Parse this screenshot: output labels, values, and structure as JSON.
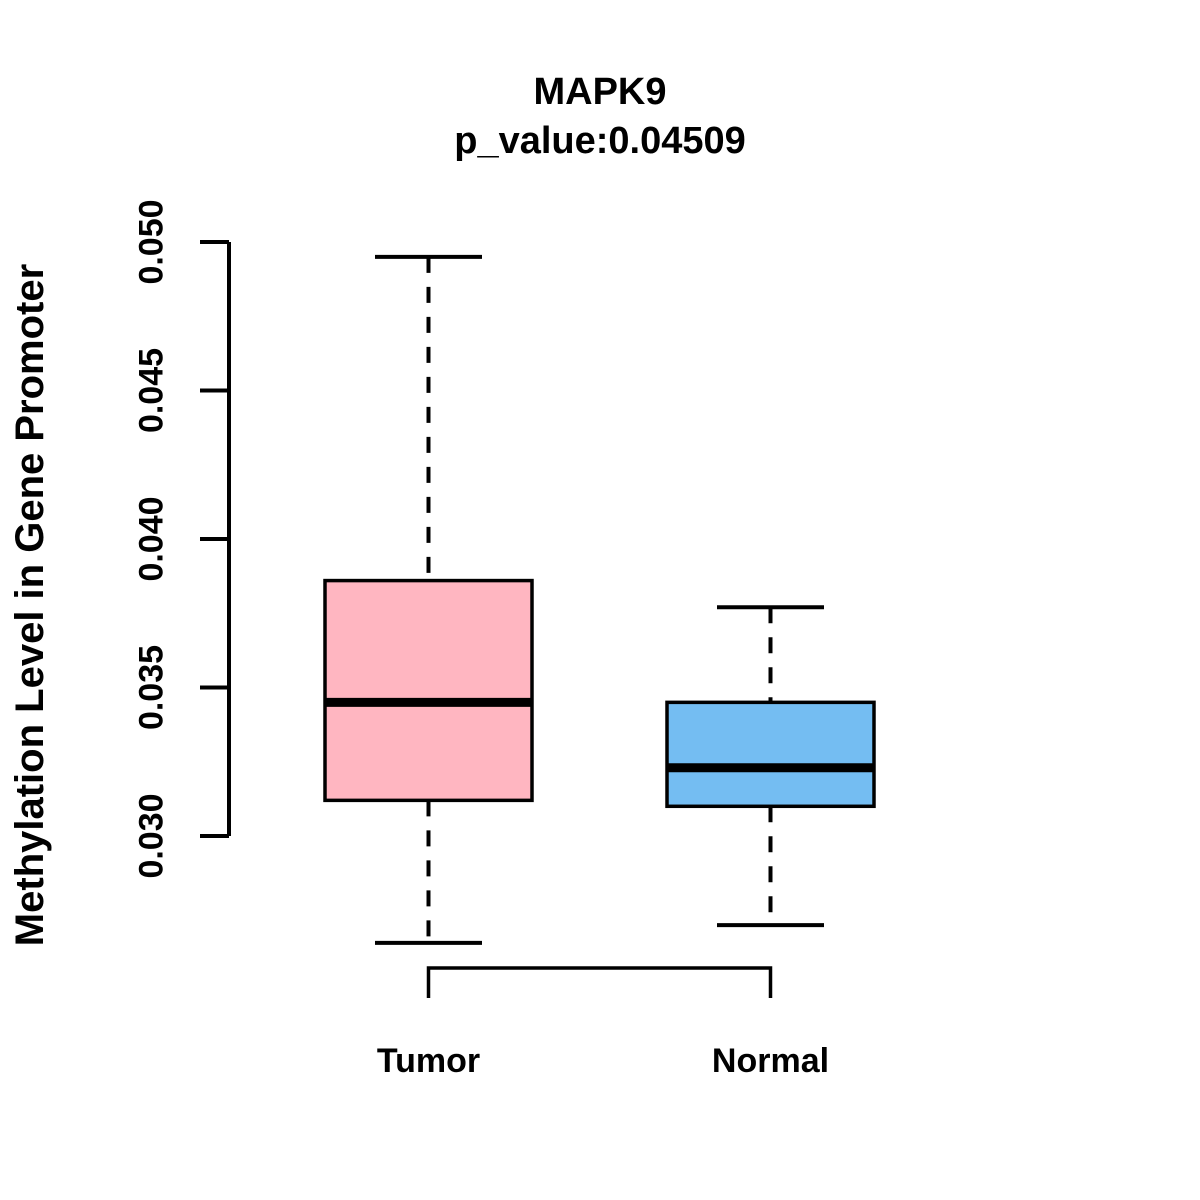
{
  "figure": {
    "background_color": "#ffffff",
    "text_color": "#000000"
  },
  "chart_data": {
    "type": "boxplot",
    "title": "MAPK9",
    "subtitle": "p_value:0.04509",
    "p_value": 0.04509,
    "ylabel": "Methylation Level in Gene Promoter",
    "xlabel": "",
    "ylim": [
      0.03,
      0.05
    ],
    "yticks": [
      0.05,
      0.045,
      0.04,
      0.035,
      0.03
    ],
    "ytick_labels": [
      "0.050",
      "0.045",
      "0.040",
      "0.035",
      "0.030"
    ],
    "grid": false,
    "legend": "none",
    "categories": [
      "Tumor",
      "Normal"
    ],
    "groups": [
      {
        "label": "Tumor",
        "fill_color": "#FFB6C1",
        "whisker_high": 0.0495,
        "q3": 0.0386,
        "median": 0.0345,
        "q1": 0.0312,
        "whisker_low": 0.0264
      },
      {
        "label": "Normal",
        "fill_color": "#74BDF2",
        "whisker_high": 0.0377,
        "q3": 0.0345,
        "median": 0.0323,
        "q1": 0.031,
        "whisker_low": 0.027
      }
    ],
    "comparison_bracket": {
      "from": "Tumor",
      "to": "Normal"
    },
    "stroke_color": "#000000",
    "whisker_style": "dashed"
  }
}
